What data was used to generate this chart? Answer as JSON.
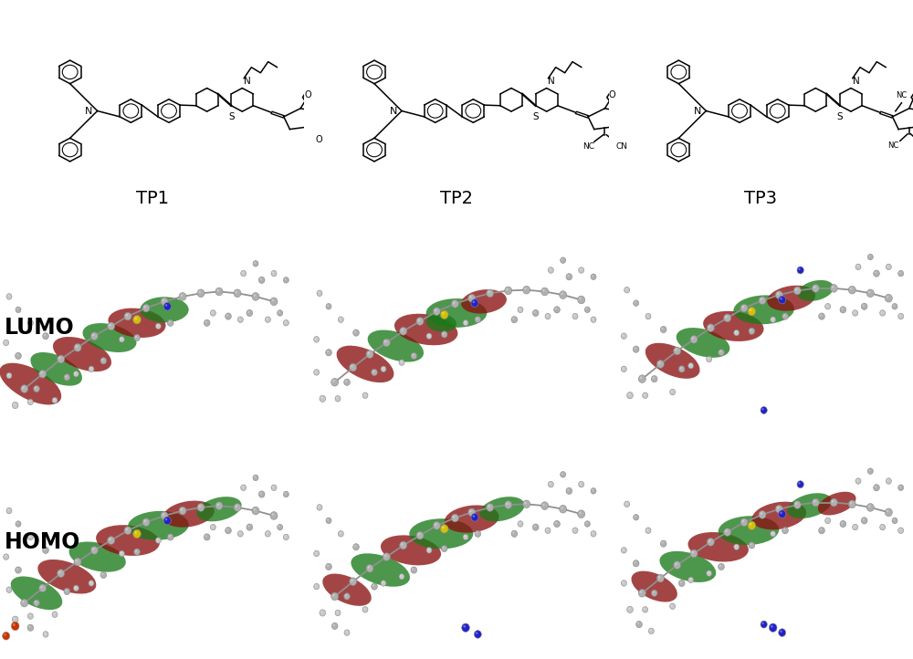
{
  "background_color": "#ffffff",
  "title_labels": [
    "TP1",
    "TP2",
    "TP3"
  ],
  "row_labels": [
    "LUMO",
    "HOMO"
  ],
  "label_fontsize": 17,
  "title_fontsize": 15,
  "label_color": "#000000",
  "title_color": "#000000",
  "figure_width": 10.0,
  "figure_height": 7.22,
  "dpi": 100,
  "green_color": "#1a7a1a",
  "red_color": "#8B1010",
  "atom_gray": "#b0b0b0",
  "atom_gray2": "#c8c8c8",
  "atom_blue": "#2222cc",
  "atom_yellow": "#d4c000",
  "atom_red": "#cc3300",
  "atom_dark": "#888888"
}
